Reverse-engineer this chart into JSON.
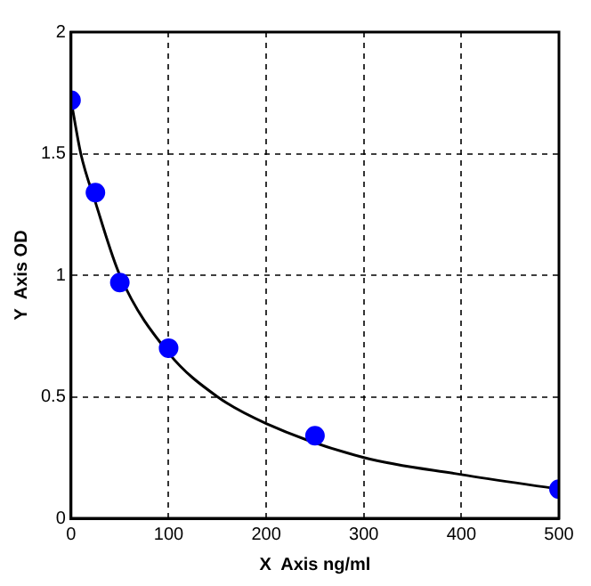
{
  "chart_data": {
    "type": "scatter",
    "xlabel": "X  Axis ng/ml",
    "ylabel": "Y  Axis OD",
    "xlim": [
      0,
      500
    ],
    "xticks": [
      0,
      100,
      200,
      300,
      400,
      500
    ],
    "ylim": [
      0,
      2
    ],
    "yticks": [
      0,
      0.5,
      1,
      1.5,
      2
    ],
    "grid": true,
    "legend": false,
    "marker": "circle",
    "series": [
      {
        "color": "#0000ff",
        "x": [
          0,
          25,
          50,
          100,
          250,
          500
        ],
        "values": [
          1.72,
          1.34,
          0.97,
          0.7,
          0.34,
          0.12
        ]
      },
      {
        "type": "line",
        "color": "#000000",
        "marker": "none",
        "line_style": "solid",
        "x": [
          0,
          10,
          25,
          50,
          100,
          150,
          200,
          300,
          400,
          500
        ],
        "values": [
          1.72,
          1.5,
          1.3,
          1.0,
          0.68,
          0.5,
          0.39,
          0.25,
          0.18,
          0.12
        ]
      }
    ]
  }
}
